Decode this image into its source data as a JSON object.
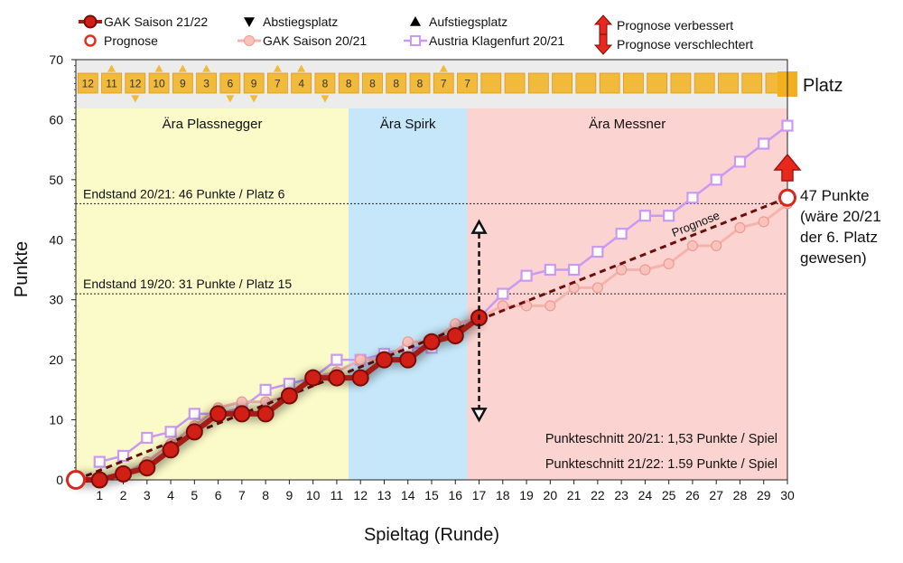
{
  "chart_data": {
    "type": "line",
    "xlabel": "Spieltag (Runde)",
    "ylabel": "Punkte",
    "xlim": [
      0,
      30
    ],
    "ylim": [
      0,
      70
    ],
    "x_ticks": [
      1,
      2,
      3,
      4,
      5,
      6,
      7,
      8,
      9,
      10,
      11,
      12,
      13,
      14,
      15,
      16,
      17,
      18,
      19,
      20,
      21,
      22,
      23,
      24,
      25,
      26,
      27,
      28,
      29,
      30
    ],
    "y_ticks": [
      0,
      10,
      20,
      30,
      40,
      50,
      60,
      70
    ],
    "legend": {
      "placement": "top",
      "entries": [
        {
          "label": "GAK Saison 21/22",
          "marker": "filled-circle-line",
          "color": "#a51b16"
        },
        {
          "label": "Prognose",
          "marker": "open-circle",
          "color": "#e0301e"
        },
        {
          "label": "Abstiegsplatz",
          "marker": "down-triangle",
          "color": "#000000"
        },
        {
          "label": "GAK Saison 20/21",
          "marker": "pale-circle-line",
          "color": "#f5b3ae"
        },
        {
          "label": "Aufstiegsplatz",
          "marker": "up-triangle",
          "color": "#000000"
        },
        {
          "label": "Austria Klagenfurt 20/21",
          "marker": "open-square-line",
          "color": "#c99af0"
        },
        {
          "label": "Prognose verbessert",
          "marker": "red-up-arrow",
          "color": "#e0301e"
        },
        {
          "label": "Prognose verschlechtert",
          "marker": "red-down-arrow",
          "color": "#e0301e"
        }
      ]
    },
    "eras": [
      {
        "label": "Ära Plassnegger",
        "from": 0,
        "to": 11.5,
        "color": "#fbfbc9"
      },
      {
        "label": "Ära Spirk",
        "from": 11.5,
        "to": 16.5,
        "color": "#c5e7f9"
      },
      {
        "label": "Ära Messner",
        "from": 16.5,
        "to": 30,
        "color": "#fbd3d1"
      }
    ],
    "reference_lines": [
      {
        "y": 46,
        "label": "Endstand 20/21: 46 Punkte / Platz 6"
      },
      {
        "y": 31,
        "label": "Endstand 19/20: 31 Punkte / Platz 15"
      }
    ],
    "series": [
      {
        "name": "GAK Saison 21/22",
        "color": "#a51b16",
        "x": [
          0,
          1,
          2,
          3,
          4,
          5,
          6,
          7,
          8,
          9,
          10,
          11,
          12,
          13,
          14,
          15,
          16,
          17
        ],
        "y": [
          0,
          0,
          1,
          2,
          5,
          8,
          11,
          11,
          11,
          14,
          17,
          17,
          17,
          20,
          20,
          23,
          24,
          27
        ]
      },
      {
        "name": "GAK Saison 20/21",
        "color": "#f5b3ae",
        "x": [
          1,
          2,
          3,
          4,
          5,
          6,
          7,
          8,
          9,
          10,
          11,
          12,
          13,
          14,
          15,
          16,
          17,
          18,
          19,
          20,
          21,
          22,
          23,
          24,
          25,
          26,
          27,
          28,
          29,
          30
        ],
        "y": [
          0,
          1,
          3,
          6,
          9,
          12,
          13,
          13,
          14,
          17,
          18,
          20,
          20,
          23,
          23,
          26,
          27,
          29,
          29,
          29,
          32,
          32,
          35,
          35,
          36,
          39,
          39,
          42,
          43,
          46
        ]
      },
      {
        "name": "Austria Klagenfurt 20/21",
        "color": "#c99af0",
        "x": [
          1,
          2,
          3,
          4,
          5,
          6,
          7,
          8,
          9,
          10,
          11,
          12,
          13,
          14,
          15,
          16,
          17,
          18,
          19,
          20,
          21,
          22,
          23,
          24,
          25,
          26,
          27,
          28,
          29,
          30
        ],
        "y": [
          3,
          4,
          7,
          8,
          11,
          11,
          12,
          15,
          16,
          17,
          20,
          20,
          21,
          22,
          22,
          25,
          27,
          31,
          34,
          35,
          35,
          38,
          41,
          44,
          44,
          47,
          50,
          53,
          56,
          59
        ]
      }
    ],
    "prognosis": {
      "label": "Prognose",
      "from": [
        0,
        0
      ],
      "to": [
        30,
        47
      ],
      "end_label": "47 Punkte (wäre 20/21 der 6. Platz gewesen)",
      "end_label_lines": [
        "47 Punkte",
        "(wäre 20/21",
        "der 6. Platz",
        "gewesen)"
      ],
      "trend": "verbessert"
    },
    "vertical_marker": {
      "x": 17,
      "from": 11,
      "to": 42
    },
    "table_position": {
      "label": "Platz",
      "ranks": [
        {
          "round": 1,
          "rank": "12",
          "mark": ""
        },
        {
          "round": 2,
          "rank": "11",
          "mark": "up"
        },
        {
          "round": 3,
          "rank": "12",
          "mark": "down"
        },
        {
          "round": 4,
          "rank": "10",
          "mark": "up"
        },
        {
          "round": 5,
          "rank": "9",
          "mark": "up"
        },
        {
          "round": 6,
          "rank": "3",
          "mark": "up"
        },
        {
          "round": 7,
          "rank": "6",
          "mark": "down"
        },
        {
          "round": 8,
          "rank": "9",
          "mark": "down"
        },
        {
          "round": 9,
          "rank": "7",
          "mark": "up"
        },
        {
          "round": 10,
          "rank": "4",
          "mark": "up"
        },
        {
          "round": 11,
          "rank": "8",
          "mark": "down"
        },
        {
          "round": 12,
          "rank": "8",
          "mark": ""
        },
        {
          "round": 13,
          "rank": "8",
          "mark": ""
        },
        {
          "round": 14,
          "rank": "8",
          "mark": ""
        },
        {
          "round": 15,
          "rank": "8",
          "mark": ""
        },
        {
          "round": 16,
          "rank": "7",
          "mark": "up"
        },
        {
          "round": 17,
          "rank": "7",
          "mark": ""
        }
      ]
    },
    "annotations": [
      "Punkteschnitt 20/21: 1,53 Punkte / Spiel",
      "Punkteschnitt 21/22: 1.59 Punkte / Spiel"
    ]
  }
}
